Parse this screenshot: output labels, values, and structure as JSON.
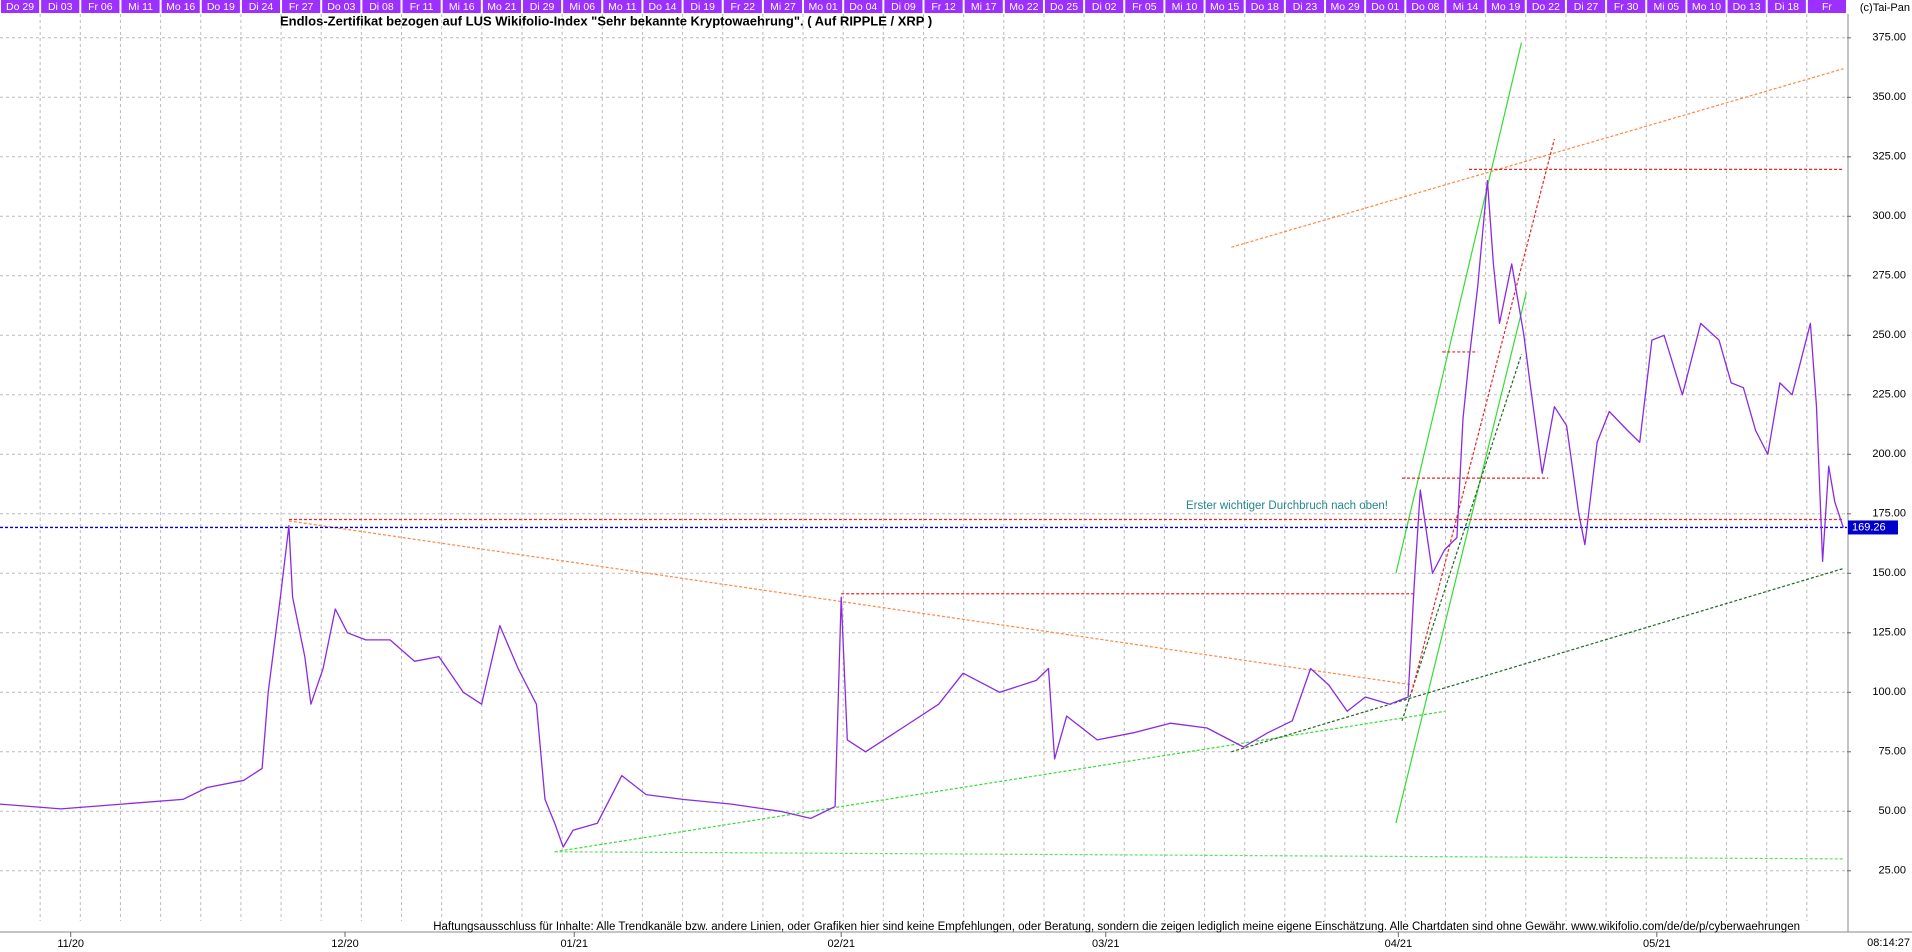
{
  "chart_data": {
    "type": "line",
    "title": "Endlos-Zertifikat bezogen auf LUS Wikifolio-Index \"Sehr bekannte Kryptowaehrung\". ( Auf RIPPLE / XRP )",
    "copyright": "(c)Tai-Pan",
    "date_strip": [
      "Do 29",
      "Di 03",
      "Fr 06",
      "Mi 11",
      "Mo 16",
      "Do 19",
      "Di 24",
      "Fr 27",
      "Do 03",
      "Di 08",
      "Fr 11",
      "Mi 16",
      "Mo 21",
      "Di 29",
      "Mi 06",
      "Mo 11",
      "Do 14",
      "Di 19",
      "Fr 22",
      "Mi 27",
      "Mo 01",
      "Do 04",
      "Di 09",
      "Fr 12",
      "Mi 17",
      "Mo 22",
      "Do 25",
      "Di 02",
      "Fr 05",
      "Mi 10",
      "Mo 15",
      "Do 18",
      "Di 23",
      "Mo 29",
      "Do 01",
      "Do 08",
      "Mi 14",
      "Mo 19",
      "Do 22",
      "Di 27",
      "Fr 30",
      "Mi 05",
      "Mo 10",
      "Do 13",
      "Di 18",
      "Fr"
    ],
    "color": "#8a2be2",
    "x": [
      0,
      50,
      100,
      150,
      170,
      200,
      215,
      220,
      230,
      237,
      240,
      250,
      255,
      265,
      275,
      285,
      300,
      320,
      340,
      360,
      380,
      395,
      410,
      425,
      440,
      447,
      455,
      462,
      470,
      490,
      510,
      530,
      560,
      600,
      640,
      665,
      685,
      690,
      695,
      710,
      740,
      770,
      790,
      820,
      850,
      860,
      865,
      875,
      900,
      930,
      960,
      990,
      1020,
      1040,
      1060,
      1075,
      1090,
      1105,
      1120,
      1140,
      1155,
      1160,
      1165,
      1175,
      1185,
      1195,
      1200,
      1205,
      1212,
      1220,
      1225,
      1230,
      1240,
      1250,
      1255,
      1265,
      1275,
      1285,
      1295,
      1300,
      1310,
      1320,
      1335,
      1345,
      1355,
      1365,
      1380,
      1395,
      1410,
      1420,
      1430,
      1440,
      1450,
      1460,
      1470,
      1480,
      1485,
      1490,
      1495,
      1500,
      1505,
      1512
    ],
    "values": [
      53,
      51,
      53,
      55,
      60,
      63,
      68,
      100,
      140,
      170,
      140,
      115,
      95,
      110,
      135,
      125,
      122,
      122,
      113,
      115,
      100,
      95,
      128,
      110,
      95,
      55,
      45,
      35,
      42,
      45,
      65,
      57,
      55,
      53,
      50,
      47,
      52,
      140,
      80,
      75,
      85,
      95,
      108,
      100,
      105,
      110,
      72,
      90,
      80,
      83,
      87,
      85,
      77,
      83,
      88,
      110,
      103,
      92,
      98,
      95,
      98,
      145,
      185,
      150,
      160,
      165,
      215,
      240,
      270,
      315,
      280,
      255,
      280,
      250,
      230,
      192,
      220,
      212,
      175,
      162,
      205,
      218,
      210,
      205,
      248,
      250,
      225,
      255,
      248,
      230,
      228,
      210,
      200,
      230,
      225,
      245,
      255,
      220,
      155,
      195,
      180,
      169.26
    ],
    "last_price": 169.26,
    "last_price_color": "#0000cc",
    "xlim": [
      0,
      1515
    ],
    "xticks": [
      {
        "value": 58,
        "label": "11/20"
      },
      {
        "value": 283,
        "label": "12/20"
      },
      {
        "value": 471,
        "label": "01/21"
      },
      {
        "value": 690,
        "label": "02/21"
      },
      {
        "value": 907,
        "label": "03/21"
      },
      {
        "value": 1147,
        "label": "04/21"
      },
      {
        "value": 1359,
        "label": "05/21"
      }
    ],
    "timestamp": "08:14:27",
    "ylim": [
      3.9,
      385
    ],
    "yticks": [
      {
        "value": 25,
        "label": "25.00"
      },
      {
        "value": 50,
        "label": "50.00"
      },
      {
        "value": 75,
        "label": "75.00"
      },
      {
        "value": 100,
        "label": "100.00"
      },
      {
        "value": 125,
        "label": "125.00"
      },
      {
        "value": 150,
        "label": "150.00"
      },
      {
        "value": 175,
        "label": "175.00"
      },
      {
        "value": 200,
        "label": "200.00"
      },
      {
        "value": 225,
        "label": "225.00"
      },
      {
        "value": 250,
        "label": "250.00"
      },
      {
        "value": 275,
        "label": "275.00"
      },
      {
        "value": 300,
        "label": "300.00"
      },
      {
        "value": 325,
        "label": "325.00"
      },
      {
        "value": 350,
        "label": "350.00"
      },
      {
        "value": 375,
        "label": "375.00"
      }
    ],
    "grid": true,
    "trendlines": [
      {
        "x1": 1145,
        "y1": 150,
        "x2": 1248,
        "y2": 373,
        "color": "#33dd33",
        "dashed": false
      },
      {
        "x1": 1145,
        "y1": 45,
        "x2": 1252,
        "y2": 268,
        "color": "#33dd33",
        "dashed": false
      },
      {
        "x1": 1150,
        "y1": 88,
        "x2": 1248,
        "y2": 242,
        "color": "#226622",
        "dashed": true
      },
      {
        "x1": 455,
        "y1": 33,
        "x2": 1185,
        "y2": 92,
        "color": "#33dd33",
        "dashed": true
      },
      {
        "x1": 455,
        "y1": 33,
        "x2": 1512,
        "y2": 30,
        "color": "#66dd66",
        "dashed": true
      },
      {
        "x1": 1010,
        "y1": 75,
        "x2": 1512,
        "y2": 152,
        "color": "#226622",
        "dashed": true
      },
      {
        "x1": 237,
        "y1": 172,
        "x2": 1160,
        "y2": 103,
        "color": "#ff8844",
        "dashed": true
      },
      {
        "x1": 1010,
        "y1": 287,
        "x2": 1512,
        "y2": 362,
        "color": "#ff8844",
        "dashed": true
      },
      {
        "x1": 237,
        "y1": 172.6,
        "x2": 1512,
        "y2": 172.6,
        "color": "#ee2222",
        "dashed": true
      },
      {
        "x1": 690,
        "y1": 141.4,
        "x2": 1160,
        "y2": 141.4,
        "color": "#ee2222",
        "dashed": true
      },
      {
        "x1": 1150,
        "y1": 190,
        "x2": 1270,
        "y2": 190,
        "color": "#ee2222",
        "dashed": true
      },
      {
        "x1": 1205,
        "y1": 319.7,
        "x2": 1512,
        "y2": 319.7,
        "color": "#ee2222",
        "dashed": true
      },
      {
        "x1": 1158,
        "y1": 100,
        "x2": 1275,
        "y2": 332.5,
        "color": "#ee2222",
        "dashed": true
      },
      {
        "x1": 1183,
        "y1": 243,
        "x2": 1212,
        "y2": 243,
        "color": "#ee2222",
        "dashed": true
      }
    ],
    "annotation": "Erster wichtiger Durchbruch nach oben!",
    "disclaimer": "Haftungsausschluss für Inhalte: Alle Trendkanäle bzw. andere Linien, oder Grafiken hier sind keine Empfehlungen, oder Beratung, sondern die zeigen lediglich meine eigene Einschätzung. Alle Chartdaten sind ohne Gewähr.  www.wikifolio.com/de/de/p/cyberwaehrungen"
  }
}
